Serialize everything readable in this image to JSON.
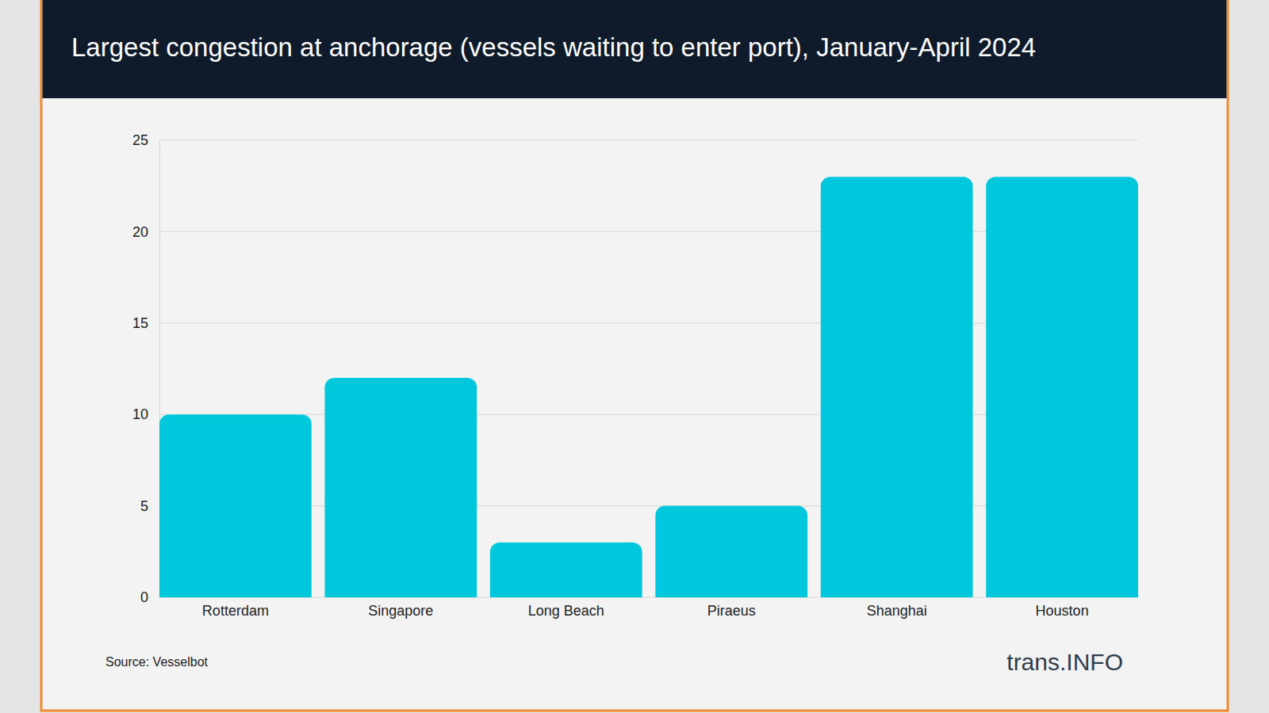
{
  "chart_data": {
    "type": "bar",
    "title": "Largest congestion at anchorage (vessels waiting to enter port), January-April 2024",
    "categories": [
      "Rotterdam",
      "Singapore",
      "Long Beach",
      "Piraeus",
      "Shanghai",
      "Houston"
    ],
    "values": [
      10,
      12,
      3,
      5,
      23,
      23
    ],
    "color": "#00c8dc",
    "ylim": [
      0,
      25
    ],
    "yticks": [
      0,
      5,
      10,
      15,
      20,
      25
    ],
    "grid": true,
    "annotations": [
      "Source: Vesselbot",
      "trans.INFO"
    ]
  }
}
